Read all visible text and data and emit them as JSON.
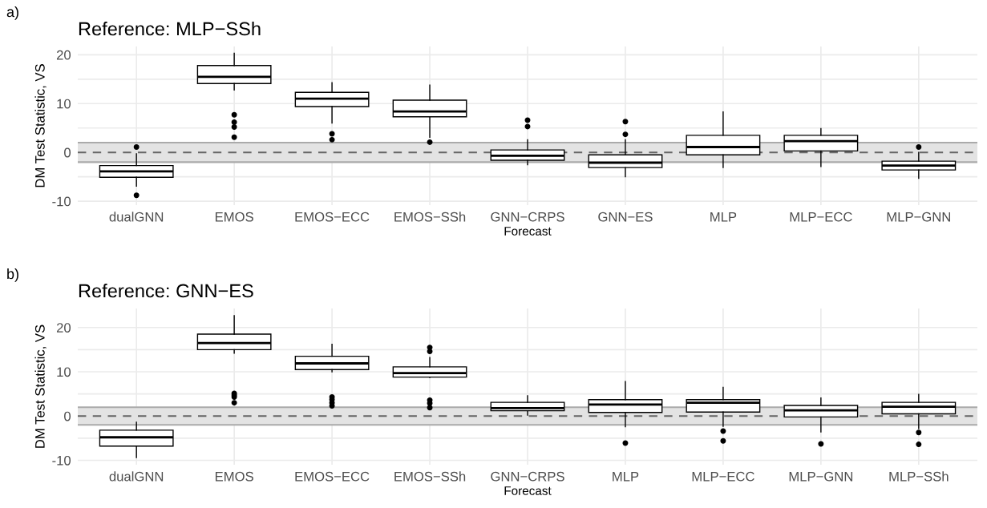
{
  "chart_data": [
    {
      "type": "box",
      "title": "Reference: MLP−SSh",
      "xlabel": "Forecast",
      "ylabel": "DM Test Statistic, VS",
      "annotations": [
        "a)"
      ],
      "categories": [
        "dualGNN",
        "EMOS",
        "EMOS−ECC",
        "EMOS−SSh",
        "GNN−CRPS",
        "GNN−ES",
        "MLP",
        "MLP−ECC",
        "MLP−GNN"
      ],
      "boxes": [
        {
          "low": -6.9,
          "q1": -5.1,
          "median": -3.9,
          "q3": -2.7,
          "high": -0.3,
          "outliers": [
            1.1,
            -8.8
          ]
        },
        {
          "low": 12.8,
          "q1": 14.1,
          "median": 15.5,
          "q3": 17.8,
          "high": 20.3,
          "outliers": [
            7.7,
            6.2,
            5.2,
            3.1
          ]
        },
        {
          "low": 6.0,
          "q1": 9.4,
          "median": 11.0,
          "q3": 12.3,
          "high": 14.3,
          "outliers": [
            3.8,
            2.6
          ]
        },
        {
          "low": 3.1,
          "q1": 7.3,
          "median": 8.4,
          "q3": 10.7,
          "high": 13.8,
          "outliers": [
            2.1
          ]
        },
        {
          "low": -2.5,
          "q1": -1.6,
          "median": -0.7,
          "q3": 0.5,
          "high": 2.6,
          "outliers": [
            6.6,
            5.3
          ]
        },
        {
          "low": -5.0,
          "q1": -3.1,
          "median": -2.1,
          "q3": -0.5,
          "high": 2.6,
          "outliers": [
            6.3,
            3.7
          ]
        },
        {
          "low": -3.1,
          "q1": -0.5,
          "median": 1.1,
          "q3": 3.5,
          "high": 8.3
        },
        {
          "low": -2.9,
          "q1": 0.3,
          "median": 2.3,
          "q3": 3.5,
          "high": 4.9
        },
        {
          "low": -5.3,
          "q1": -3.6,
          "median": -2.7,
          "q3": -1.8,
          "high": 0.0,
          "outliers": [
            1.1
          ]
        }
      ],
      "ylim": [
        -10.8,
        21.7
      ],
      "yticks": [
        -10,
        {
          "value": -5,
          "label": null
        },
        0,
        {
          "value": 5,
          "label": null
        },
        10,
        {
          "value": 15,
          "label": null
        },
        20
      ],
      "ref_lines": [
        {
          "axis": "y",
          "value": 0,
          "label": null,
          "color": "#666666",
          "line_style": "dashed"
        },
        {
          "axis": "y",
          "value": -2,
          "label": null,
          "color": "#aaaaaa",
          "line_style": "solid"
        },
        {
          "axis": "y",
          "value": 2,
          "label": null,
          "color": "#aaaaaa",
          "line_style": "solid"
        }
      ],
      "bands": [
        {
          "axis": "y",
          "from": -2,
          "to": 2,
          "label": null,
          "color": "#e3e3e3"
        }
      ],
      "grid": true
    },
    {
      "type": "box",
      "title": "Reference: GNN−ES",
      "xlabel": "Forecast",
      "ylabel": "DM Test Statistic, VS",
      "annotations": [
        "b)"
      ],
      "categories": [
        "dualGNN",
        "EMOS",
        "EMOS−ECC",
        "EMOS−SSh",
        "GNN−CRPS",
        "MLP",
        "MLP−ECC",
        "MLP−GNN",
        "MLP−SSh"
      ],
      "boxes": [
        {
          "low": -9.4,
          "q1": -6.8,
          "median": -4.8,
          "q3": -3.2,
          "high": -1.4
        },
        {
          "low": 14.2,
          "q1": 15.0,
          "median": 16.5,
          "q3": 18.5,
          "high": 22.7,
          "outliers": [
            5.1,
            4.7,
            4.3,
            3.0
          ]
        },
        {
          "low": 10.0,
          "q1": 10.5,
          "median": 11.9,
          "q3": 13.5,
          "high": 16.2,
          "outliers": [
            4.3,
            3.7,
            3.0,
            2.3
          ]
        },
        {
          "low": 8.7,
          "q1": 8.8,
          "median": 9.7,
          "q3": 11.1,
          "high": 13.2,
          "outliers": [
            15.5,
            14.6,
            3.6,
            2.9,
            1.9
          ]
        },
        {
          "low": 0.2,
          "q1": 1.2,
          "median": 1.8,
          "q3": 3.1,
          "high": 4.6
        },
        {
          "low": -2.4,
          "q1": 0.8,
          "median": 2.6,
          "q3": 3.7,
          "high": 7.8,
          "outliers": [
            -6.1
          ]
        },
        {
          "low": -2.3,
          "q1": 0.9,
          "median": 3.0,
          "q3": 3.7,
          "high": 6.5,
          "outliers": [
            -3.4,
            -5.6
          ]
        },
        {
          "low": -3.6,
          "q1": -0.2,
          "median": 1.3,
          "q3": 2.4,
          "high": 4.1,
          "outliers": [
            -6.3
          ]
        },
        {
          "low": -2.8,
          "q1": 0.5,
          "median": 2.1,
          "q3": 3.1,
          "high": 4.9,
          "outliers": [
            -3.7,
            -6.4
          ]
        }
      ],
      "ylim": [
        -11.0,
        24.3
      ],
      "yticks": [
        -10,
        {
          "value": -5,
          "label": null
        },
        0,
        {
          "value": 5,
          "label": null
        },
        10,
        {
          "value": 15,
          "label": null
        },
        20
      ],
      "ref_lines": [
        {
          "axis": "y",
          "value": 0,
          "label": null,
          "color": "#666666",
          "line_style": "dashed"
        },
        {
          "axis": "y",
          "value": -2,
          "label": null,
          "color": "#aaaaaa",
          "line_style": "solid"
        },
        {
          "axis": "y",
          "value": 2,
          "label": null,
          "color": "#aaaaaa",
          "line_style": "solid"
        }
      ],
      "bands": [
        {
          "axis": "y",
          "from": -2,
          "to": 2,
          "label": null,
          "color": "#e3e3e3"
        }
      ],
      "grid": true
    }
  ]
}
